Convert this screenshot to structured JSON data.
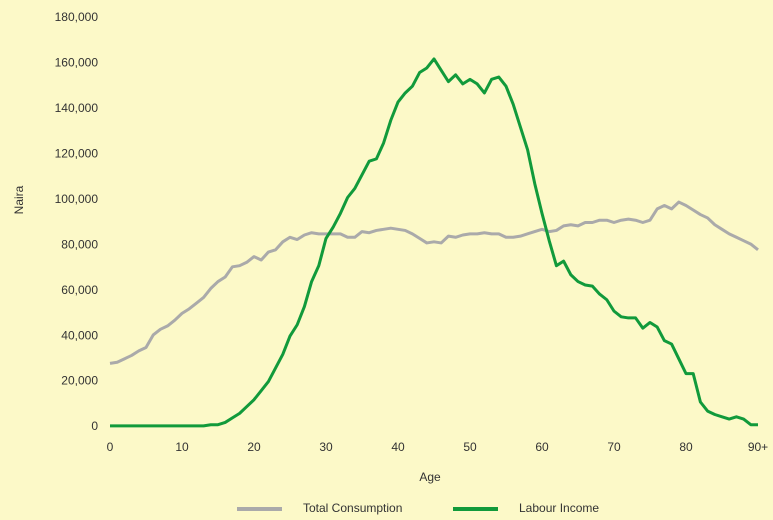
{
  "chart_data": {
    "type": "line",
    "xlabel": "Age",
    "ylabel": "Naira",
    "x": [
      0,
      1,
      2,
      3,
      4,
      5,
      6,
      7,
      8,
      9,
      10,
      11,
      12,
      13,
      14,
      15,
      16,
      17,
      18,
      19,
      20,
      21,
      22,
      23,
      24,
      25,
      26,
      27,
      28,
      29,
      30,
      31,
      32,
      33,
      34,
      35,
      36,
      37,
      38,
      39,
      40,
      41,
      42,
      43,
      44,
      45,
      46,
      47,
      48,
      49,
      50,
      51,
      52,
      53,
      54,
      55,
      56,
      57,
      58,
      59,
      60,
      61,
      62,
      63,
      64,
      65,
      66,
      67,
      68,
      69,
      70,
      71,
      72,
      73,
      74,
      75,
      76,
      77,
      78,
      79,
      80,
      81,
      82,
      83,
      84,
      85,
      86,
      87,
      88,
      89,
      90
    ],
    "series": [
      {
        "name": "Total Consumption",
        "color": "#aaaaaa",
        "values": [
          28000,
          28500,
          30000,
          31500,
          33500,
          35000,
          40500,
          43000,
          44500,
          47000,
          50000,
          52000,
          54500,
          57000,
          61000,
          64000,
          66000,
          70500,
          71000,
          72500,
          75000,
          73500,
          77000,
          78000,
          81500,
          83500,
          82500,
          84500,
          85500,
          85000,
          85000,
          85000,
          85000,
          83500,
          83500,
          86000,
          85500,
          86500,
          87000,
          87500,
          87000,
          86500,
          85000,
          83000,
          81000,
          81500,
          81000,
          84000,
          83500,
          84500,
          85000,
          85000,
          85500,
          85000,
          85000,
          83500,
          83500,
          84000,
          85000,
          86000,
          87000,
          86000,
          86500,
          88500,
          89000,
          88500,
          90000,
          90000,
          91000,
          91000,
          90000,
          91000,
          91500,
          91000,
          90000,
          91000,
          96000,
          97500,
          96000,
          99000,
          97500,
          95500,
          93500,
          92000,
          89000,
          87000,
          85000,
          83500,
          82000,
          80500,
          78000
        ]
      },
      {
        "name": "Labour Income",
        "color": "#119a3b",
        "values": [
          500,
          500,
          500,
          500,
          500,
          500,
          500,
          500,
          500,
          500,
          500,
          500,
          500,
          500,
          1000,
          1000,
          2000,
          4000,
          6000,
          9000,
          12000,
          16000,
          20000,
          26000,
          32000,
          40000,
          45000,
          53000,
          64000,
          71000,
          83000,
          88000,
          94000,
          101000,
          105000,
          111000,
          117000,
          118000,
          125000,
          135000,
          143000,
          147000,
          150000,
          156000,
          158000,
          162000,
          157000,
          152000,
          155000,
          151000,
          153000,
          151000,
          147000,
          153000,
          154000,
          150000,
          142000,
          132000,
          122000,
          107000,
          94000,
          82000,
          71000,
          73000,
          67000,
          64000,
          62500,
          62000,
          58500,
          56000,
          51000,
          48500,
          48000,
          48000,
          43500,
          46000,
          44000,
          38000,
          36500,
          30000,
          23500,
          23500,
          11000,
          7000,
          5500,
          4500,
          3500,
          4500,
          3500,
          1000,
          1000
        ]
      }
    ],
    "xlim": [
      0,
      90
    ],
    "xticks": [
      0,
      10,
      20,
      30,
      40,
      50,
      60,
      70,
      80,
      {
        "value": 90,
        "label": "90+"
      }
    ],
    "ylim": [
      0,
      180000
    ],
    "yticks": [
      0,
      {
        "value": 20000,
        "label": "20,000"
      },
      {
        "value": 40000,
        "label": "40,000"
      },
      {
        "value": 60000,
        "label": "60,000"
      },
      {
        "value": 80000,
        "label": "80,000"
      },
      {
        "value": 100000,
        "label": "100,000"
      },
      {
        "value": 120000,
        "label": "120,000"
      },
      {
        "value": 140000,
        "label": "140,000"
      },
      {
        "value": 160000,
        "label": "160,000"
      },
      {
        "value": 180000,
        "label": "180,000"
      }
    ],
    "legend": "bottom"
  }
}
